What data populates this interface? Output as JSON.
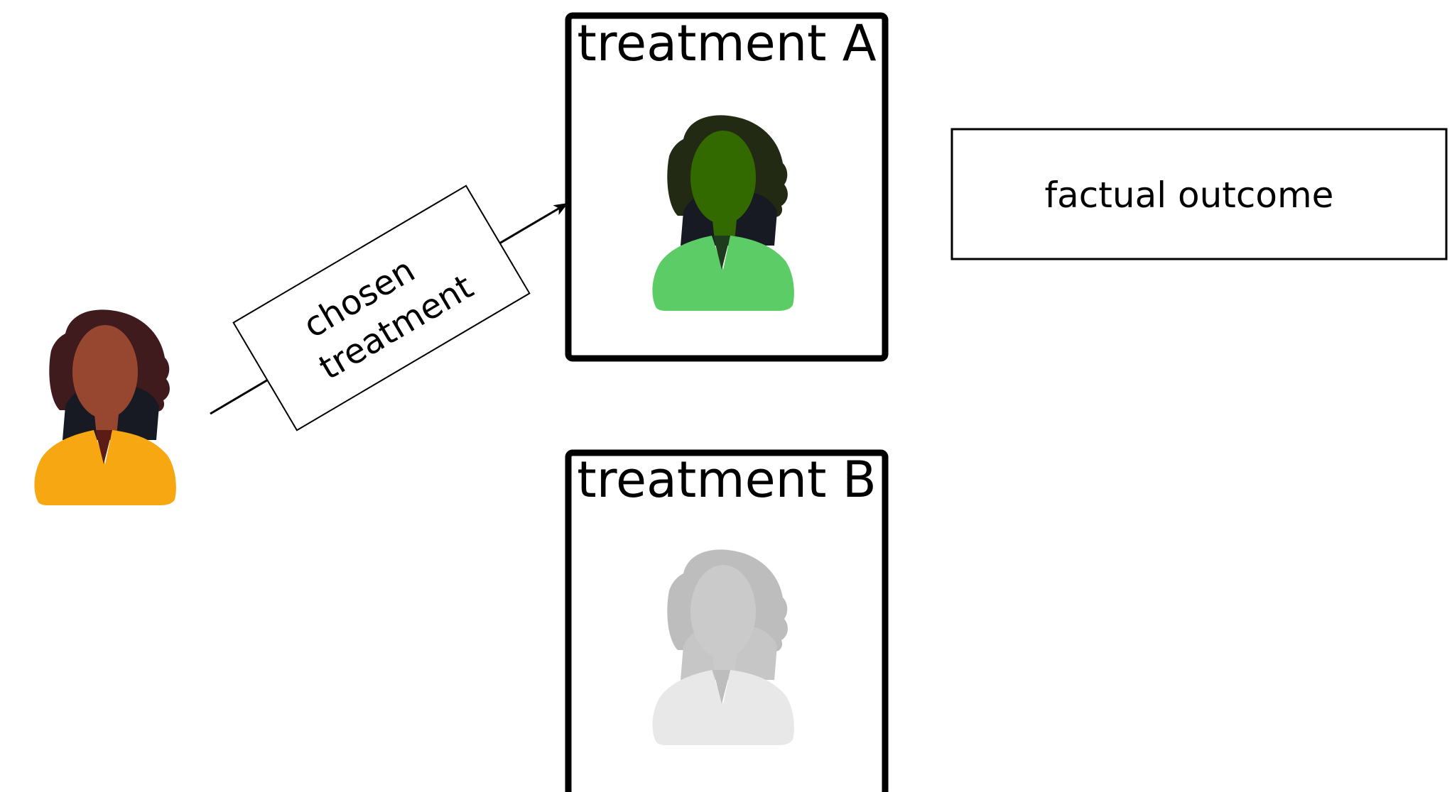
{
  "diagram": {
    "treatment_a": {
      "title": "treatment A"
    },
    "treatment_b": {
      "title": "treatment B"
    },
    "arrow_label": {
      "line1": "chosen",
      "line2": "treatment"
    },
    "outcome": {
      "label": "factual outcome"
    }
  },
  "colors": {
    "patient_shirt": "#F6A711",
    "patient_skin": "#97472F",
    "patient_hair": "#3F1B1D",
    "treated_shirt": "#5CCD66",
    "treated_skin": "#326A00",
    "treated_hair": "#232A13",
    "faded_shirt": "#E8E8E8",
    "faded_skin": "#CACACA",
    "faded_hair": "#BDBDBD",
    "collar_dark": "#171A22"
  },
  "icons": [
    "person-icon"
  ]
}
